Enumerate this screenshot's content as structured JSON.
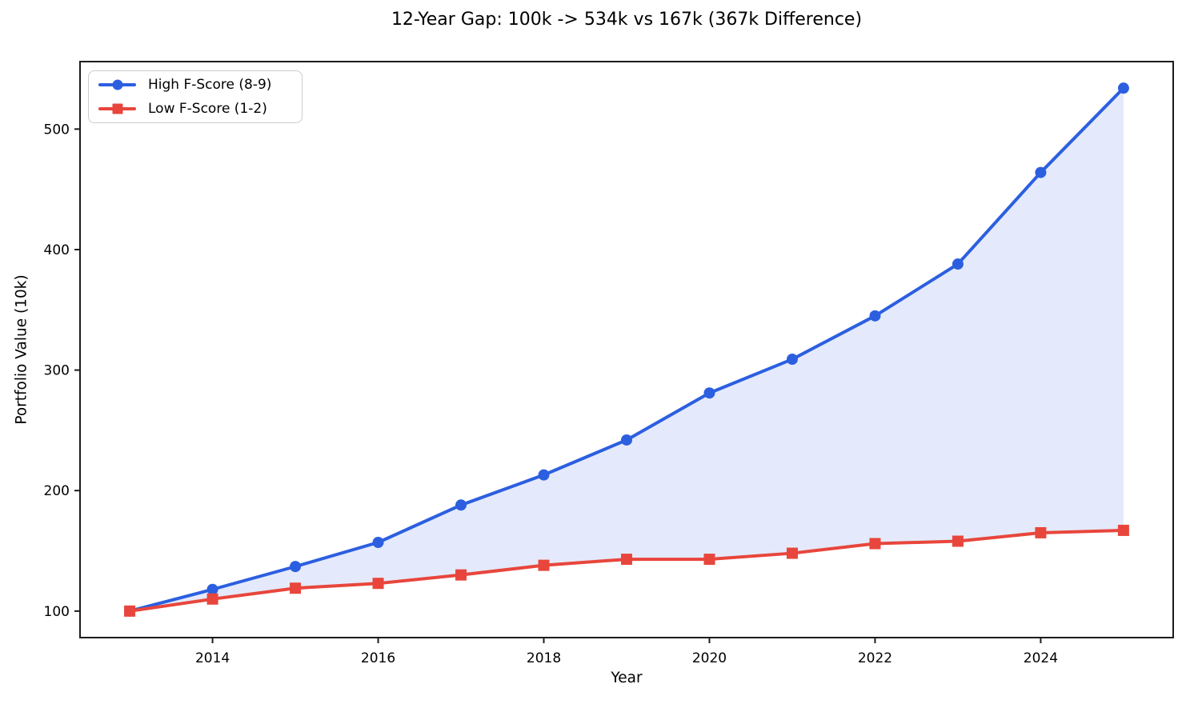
{
  "chart_data": {
    "type": "line",
    "title": "12-Year Gap: 100k -> 534k vs 167k (367k Difference)",
    "xlabel": "Year",
    "ylabel": "Portfolio Value (10k)",
    "x": [
      2013,
      2014,
      2015,
      2016,
      2017,
      2018,
      2019,
      2020,
      2021,
      2022,
      2023,
      2024,
      2025
    ],
    "series": [
      {
        "name": "High F-Score (8-9)",
        "color": "#2c5fe0",
        "marker": "circle",
        "values": [
          100,
          118,
          137,
          157,
          188,
          213,
          242,
          281,
          309,
          345,
          388,
          464,
          534
        ]
      },
      {
        "name": "Low F-Score (1-2)",
        "color": "#e8463c",
        "marker": "square",
        "values": [
          100,
          110,
          119,
          123,
          130,
          138,
          143,
          143,
          148,
          156,
          158,
          165,
          167
        ]
      }
    ],
    "fill_between_series": true,
    "fill_color": "rgba(44, 95, 224, 0.13)",
    "xlim": [
      2012.4,
      2025.6
    ],
    "ylim": [
      78,
      556
    ],
    "xticks": [
      2014,
      2016,
      2018,
      2020,
      2022,
      2024
    ],
    "yticks": [
      100,
      200,
      300,
      400,
      500
    ],
    "grid": false,
    "legend_position": "upper-left",
    "axis_color": "#1c1c1c",
    "line_width": 4,
    "marker_size": 14
  }
}
